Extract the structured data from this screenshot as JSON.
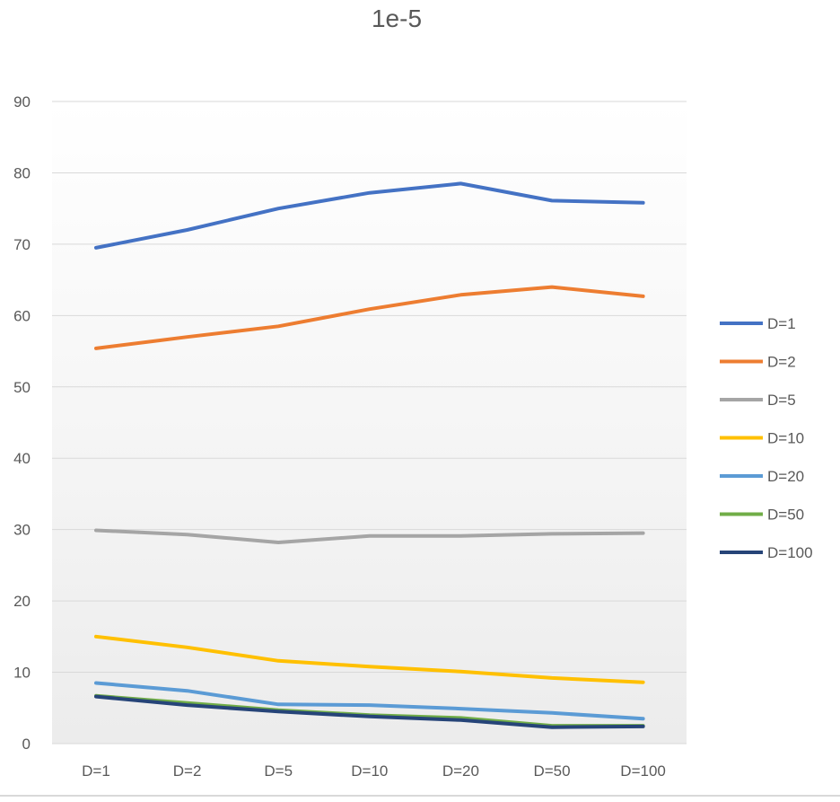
{
  "chart_data": {
    "type": "line",
    "title": "1e-5",
    "xlabel": "",
    "ylabel": "",
    "categories": [
      "D=1",
      "D=2",
      "D=5",
      "D=10",
      "D=20",
      "D=50",
      "D=100"
    ],
    "ylim": [
      0,
      90
    ],
    "yticks": [
      0,
      10,
      20,
      30,
      40,
      50,
      60,
      70,
      80,
      90
    ],
    "grid": "horizontal",
    "legend_position": "right",
    "series": [
      {
        "name": "D=1",
        "color": "#4472C4",
        "values": [
          69.5,
          72.0,
          75.0,
          77.2,
          78.5,
          76.1,
          75.8
        ]
      },
      {
        "name": "D=2",
        "color": "#ED7D31",
        "values": [
          55.4,
          57.0,
          58.5,
          60.9,
          62.9,
          64.0,
          62.7
        ]
      },
      {
        "name": "D=5",
        "color": "#A5A5A5",
        "values": [
          29.9,
          29.3,
          28.2,
          29.1,
          29.1,
          29.4,
          29.5
        ]
      },
      {
        "name": "D=10",
        "color": "#FFC000",
        "values": [
          15.0,
          13.5,
          11.6,
          10.8,
          10.1,
          9.2,
          8.6
        ]
      },
      {
        "name": "D=20",
        "color": "#5B9BD5",
        "values": [
          8.5,
          7.4,
          5.5,
          5.4,
          4.9,
          4.3,
          3.5
        ]
      },
      {
        "name": "D=50",
        "color": "#70AD47",
        "values": [
          6.7,
          5.7,
          4.7,
          4.0,
          3.6,
          2.5,
          2.5
        ]
      },
      {
        "name": "D=100",
        "color": "#264478",
        "values": [
          6.6,
          5.4,
          4.5,
          3.8,
          3.3,
          2.3,
          2.4
        ]
      }
    ]
  }
}
